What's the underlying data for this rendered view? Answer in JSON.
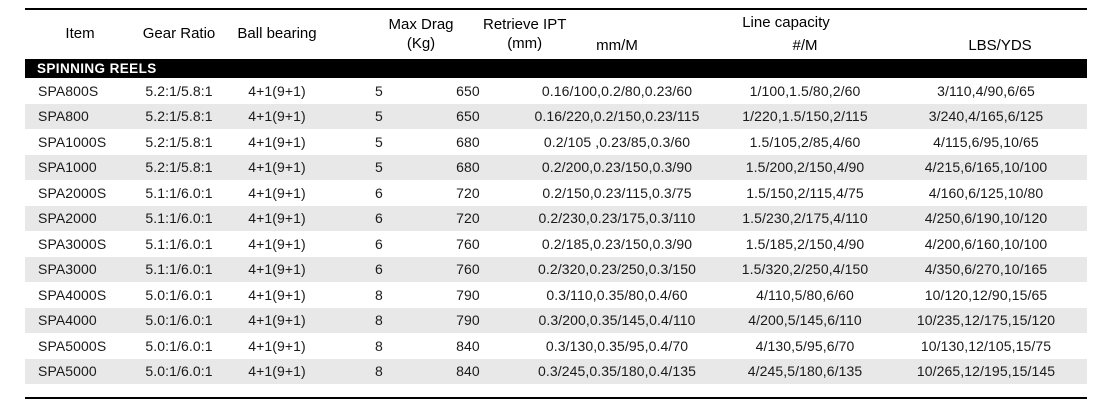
{
  "colors": {
    "section_bg": "#000000",
    "section_text": "#ffffff",
    "alt_row_bg": "#e8e8e8",
    "border": "#000000",
    "text": "#1a1a1a"
  },
  "table": {
    "header": {
      "item": "Item",
      "gear_ratio": "Gear Ratio",
      "ball_bearing": "Ball bearing",
      "max_drag_line1": "Max Drag",
      "max_drag_line2": "(Kg)",
      "retrieve_line1": "Retrieve IPT",
      "retrieve_line2": "(mm)",
      "line_capacity": "Line capacity",
      "sub_mm": "mm/M",
      "sub_num": "#/M",
      "sub_lbs": "LBS/YDS"
    },
    "section": "SPINNING REELS",
    "column_keys": [
      "item",
      "gear-ratio",
      "ball-bearing",
      "max-drag",
      "retrieve-ipt",
      "line-capacity-mm-m",
      "line-capacity-num-m",
      "line-capacity-lbs-yds"
    ],
    "rows": [
      [
        "SPA800S",
        "5.2:1/5.8:1",
        "4+1(9+1)",
        "5",
        "650",
        "0.16/100,0.2/80,0.23/60",
        "1/100,1.5/80,2/60",
        "3/110,4/90,6/65"
      ],
      [
        "SPA800",
        "5.2:1/5.8:1",
        "4+1(9+1)",
        "5",
        "650",
        "0.16/220,0.2/150,0.23/115",
        "1/220,1.5/150,2/115",
        "3/240,4/165,6/125"
      ],
      [
        "SPA1000S",
        "5.2:1/5.8:1",
        "4+1(9+1)",
        "5",
        "680",
        "0.2/105 ,0.23/85,0.3/60",
        "1.5/105,2/85,4/60",
        "4/115,6/95,10/65"
      ],
      [
        "SPA1000",
        "5.2:1/5.8:1",
        "4+1(9+1)",
        "5",
        "680",
        "0.2/200,0.23/150,0.3/90",
        "1.5/200,2/150,4/90",
        "4/215,6/165,10/100"
      ],
      [
        "SPA2000S",
        "5.1:1/6.0:1",
        "4+1(9+1)",
        "6",
        "720",
        "0.2/150,0.23/115,0.3/75",
        "1.5/150,2/115,4/75",
        "4/160,6/125,10/80"
      ],
      [
        "SPA2000",
        "5.1:1/6.0:1",
        "4+1(9+1)",
        "6",
        "720",
        "0.2/230,0.23/175,0.3/110",
        "1.5/230,2/175,4/110",
        "4/250,6/190,10/120"
      ],
      [
        "SPA3000S",
        "5.1:1/6.0:1",
        "4+1(9+1)",
        "6",
        "760",
        "0.2/185,0.23/150,0.3/90",
        "1.5/185,2/150,4/90",
        "4/200,6/160,10/100"
      ],
      [
        "SPA3000",
        "5.1:1/6.0:1",
        "4+1(9+1)",
        "6",
        "760",
        "0.2/320,0.23/250,0.3/150",
        "1.5/320,2/250,4/150",
        "4/350,6/270,10/165"
      ],
      [
        "SPA4000S",
        "5.0:1/6.0:1",
        "4+1(9+1)",
        "8",
        "790",
        "0.3/110,0.35/80,0.4/60",
        "4/110,5/80,6/60",
        "10/120,12/90,15/65"
      ],
      [
        "SPA4000",
        "5.0:1/6.0:1",
        "4+1(9+1)",
        "8",
        "790",
        "0.3/200,0.35/145,0.4/110",
        "4/200,5/145,6/110",
        "10/235,12/175,15/120"
      ],
      [
        "SPA5000S",
        "5.0:1/6.0:1",
        "4+1(9+1)",
        "8",
        "840",
        "0.3/130,0.35/95,0.4/70",
        "4/130,5/95,6/70",
        "10/130,12/105,15/75"
      ],
      [
        "SPA5000",
        "5.0:1/6.0:1",
        "4+1(9+1)",
        "8",
        "840",
        "0.3/245,0.35/180,0.4/135",
        "4/245,5/180,6/135",
        "10/265,12/195,15/145"
      ]
    ]
  }
}
